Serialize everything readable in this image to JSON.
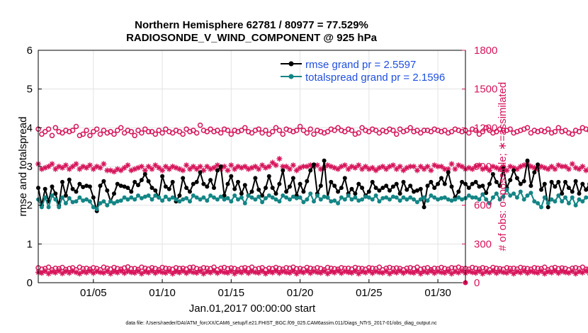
{
  "colors": {
    "rmse": "#000000",
    "spread": "#138585",
    "obs": "#d6145a",
    "grid": "#e3e3e3",
    "legend_text": "#1f4fe0"
  },
  "chart_data": {
    "type": "line",
    "title": "Northern Hemisphere 62781 / 80977 = 77.529%",
    "subtitle": "RADIOSONDE_V_WIND_COMPONENT @ 925 hPa",
    "xlabel": "Jan.01,2017 00:00:00 start",
    "ylabel": "rmse and totalspread",
    "ylabel_right": "# of obs: o=possible; ∗=assimilated",
    "xlim": [
      1,
      32
    ],
    "ylim": [
      0,
      6
    ],
    "ylim_right": [
      0,
      1800
    ],
    "xticks": [
      "01/05",
      "01/10",
      "01/15",
      "01/20",
      "01/25",
      "01/30"
    ],
    "xtick_days": [
      5,
      10,
      15,
      20,
      25,
      30
    ],
    "yticks": [
      "0",
      "1",
      "2",
      "3",
      "4",
      "5",
      "6"
    ],
    "yticks_right": [
      "0",
      "300",
      "600",
      "900",
      "1200",
      "1500",
      "1800"
    ],
    "legend": [
      "rmse grand pr = 2.5597",
      "totalspread grand pr = 2.1596"
    ],
    "legend_position": "top-right",
    "grid": true,
    "x_start": 1.0,
    "x_step": 0.25,
    "series": [
      {
        "name": "rmse",
        "style": "line-filled-circle",
        "values": [
          2.45,
          2.0,
          2.42,
          2.1,
          2.48,
          2.3,
          2.0,
          2.6,
          2.25,
          2.66,
          2.42,
          2.35,
          2.55,
          2.47,
          2.5,
          2.48,
          2.2,
          1.85,
          2.5,
          2.62,
          2.38,
          2.1,
          2.3,
          2.55,
          2.5,
          2.48,
          2.45,
          2.35,
          2.6,
          2.52,
          2.65,
          2.8,
          2.62,
          2.45,
          2.38,
          2.2,
          2.75,
          2.48,
          2.42,
          2.6,
          2.1,
          2.25,
          2.7,
          2.45,
          2.35,
          2.55,
          2.6,
          2.85,
          2.55,
          2.48,
          2.65,
          2.45,
          2.9,
          3.0,
          2.25,
          2.55,
          2.75,
          2.42,
          2.6,
          2.3,
          2.52,
          2.25,
          2.35,
          2.7,
          2.4,
          2.25,
          2.45,
          2.75,
          2.45,
          2.3,
          2.55,
          2.9,
          2.35,
          2.48,
          2.7,
          2.25,
          2.55,
          2.35,
          2.62,
          2.9,
          3.05,
          2.3,
          2.5,
          3.15,
          2.2,
          2.6,
          2.5,
          2.35,
          2.45,
          2.7,
          2.3,
          2.42,
          2.3,
          2.55,
          2.45,
          2.25,
          2.35,
          2.6,
          2.45,
          2.38,
          2.45,
          2.5,
          2.38,
          2.48,
          2.55,
          2.3,
          2.6,
          2.4,
          2.5,
          2.35,
          2.38,
          2.42,
          1.95,
          2.5,
          2.6,
          2.45,
          2.55,
          2.7,
          2.55,
          2.85,
          2.48,
          2.2,
          2.35,
          2.6,
          2.55,
          2.45,
          2.55,
          2.6,
          2.48,
          2.5,
          2.32,
          2.55,
          2.8,
          2.6,
          2.5,
          2.95,
          2.45,
          2.65,
          2.9,
          2.7,
          2.55,
          2.62,
          3.15,
          2.5,
          2.85,
          3.05,
          2.4,
          2.55,
          1.95,
          2.6,
          2.48,
          2.6,
          2.3,
          2.6,
          2.45,
          2.35,
          2.62,
          2.3,
          2.55,
          2.4,
          2.55,
          2.55,
          2.45,
          2.3,
          2.4,
          2.6,
          2.7,
          2.35,
          2.4
        ]
      },
      {
        "name": "totalspread",
        "style": "line-filled-circle",
        "values": [
          2.15,
          1.95,
          2.2,
          1.95,
          2.25,
          2.15,
          1.95,
          2.2,
          2.05,
          2.18,
          2.08,
          2.1,
          2.2,
          2.12,
          2.15,
          2.1,
          1.95,
          1.9,
          2.05,
          2.1,
          2.0,
          2.1,
          2.05,
          2.1,
          2.12,
          2.2,
          2.15,
          2.2,
          2.15,
          2.25,
          2.18,
          2.22,
          2.25,
          2.15,
          2.25,
          2.2,
          2.12,
          2.22,
          2.15,
          2.2,
          2.15,
          2.1,
          2.15,
          2.18,
          2.1,
          2.25,
          2.2,
          2.15,
          2.2,
          2.12,
          2.25,
          2.2,
          2.15,
          2.22,
          2.15,
          2.18,
          2.1,
          2.25,
          2.15,
          2.2,
          2.05,
          2.25,
          2.2,
          2.15,
          2.22,
          2.08,
          2.18,
          2.25,
          2.2,
          2.15,
          2.1,
          2.25,
          2.2,
          2.15,
          2.22,
          2.18,
          2.2,
          2.08,
          2.15,
          2.3,
          2.1,
          2.25,
          2.15,
          2.22,
          2.2,
          2.1,
          2.12,
          2.05,
          2.2,
          2.15,
          2.25,
          2.15,
          2.2,
          2.12,
          2.15,
          2.22,
          2.2,
          2.15,
          2.25,
          2.1,
          2.18,
          2.2,
          2.15,
          2.22,
          2.2,
          2.12,
          2.2,
          2.15,
          2.2,
          2.15,
          2.08,
          2.15,
          2.2,
          2.12,
          2.25,
          2.2,
          2.15,
          2.18,
          2.2,
          2.15,
          2.12,
          2.15,
          2.2,
          2.15,
          2.18,
          2.25,
          2.2,
          2.2,
          2.15,
          2.28,
          2.15,
          2.05,
          2.2,
          2.3,
          2.15,
          2.22,
          2.4,
          2.25,
          2.3,
          2.2,
          2.35,
          2.15,
          2.25,
          2.32,
          2.1,
          2.05,
          1.95,
          2.2,
          2.05,
          2.15,
          2.1,
          2.25,
          2.1,
          2.2,
          2.05,
          2.2,
          2.0,
          2.15,
          2.1,
          2.2,
          2.2,
          2.05,
          2.1,
          2.05,
          2.15,
          2.05,
          1.85,
          1.9
        ]
      },
      {
        "name": "possible",
        "axis": "right",
        "style": "open-circle",
        "values": [
          1190,
          1150,
          1170,
          1190,
          1140,
          1200,
          1170,
          1160,
          1180,
          1170,
          1180,
          1210,
          1140,
          1150,
          1180,
          1140,
          1170,
          1190,
          1150,
          1180,
          1160,
          1170,
          1150,
          1180,
          1200,
          1160,
          1180,
          1170,
          1140,
          1180,
          1160,
          1190,
          1170,
          1170,
          1150,
          1180,
          1160,
          1190,
          1170,
          1160,
          1180,
          1170,
          1150,
          1190,
          1170,
          1180,
          1160,
          1220,
          1180,
          1170,
          1190,
          1170,
          1180,
          1160,
          1190,
          1180,
          1150,
          1180,
          1170,
          1180,
          1200,
          1170,
          1160,
          1180,
          1190,
          1160,
          1180,
          1150,
          1170,
          1200,
          1180,
          1150,
          1190,
          1180,
          1170,
          1180,
          1210,
          1180,
          1160,
          1190,
          1150,
          1180,
          1170,
          1160,
          1170,
          1190,
          1180,
          1200,
          1180,
          1170,
          1190,
          1180,
          1150,
          1160,
          1200,
          1180,
          1170,
          1190,
          1180,
          1160,
          1180,
          1170,
          1190,
          1180,
          1150,
          1190,
          1170,
          1180,
          1200,
          1170,
          1180,
          1160,
          1180,
          1180,
          1170,
          1190,
          1180,
          1170,
          1180,
          1160,
          1170,
          1190,
          1180,
          1170,
          1180,
          1160,
          1190,
          1180,
          1150,
          1170,
          1200,
          1180,
          1160,
          1170,
          1190,
          1180,
          1180,
          1190,
          1160,
          1170,
          1180,
          1190,
          1200,
          1160,
          1180,
          1170,
          1180,
          1170,
          1190,
          1160,
          1170,
          1200,
          1170,
          1180,
          1160,
          1150,
          1180,
          1170,
          1200,
          1190,
          1180,
          1200,
          1170,
          1180,
          1190,
          1210,
          1180
        ]
      },
      {
        "name": "assimilated",
        "axis": "right",
        "style": "asterisk",
        "values": [
          920,
          880,
          890,
          900,
          920,
          880,
          900,
          890,
          910,
          880,
          900,
          920,
          880,
          900,
          890,
          910,
          880,
          900,
          890,
          920,
          870,
          870,
          860,
          880,
          870,
          890,
          910,
          870,
          880,
          890,
          900,
          870,
          900,
          880,
          910,
          890,
          870,
          900,
          880,
          900,
          890,
          880,
          870,
          910,
          880,
          900,
          880,
          900,
          870,
          900,
          880,
          890,
          910,
          880,
          900,
          870,
          910,
          880,
          900,
          890,
          900,
          880,
          890,
          900,
          880,
          910,
          890,
          900,
          930,
          910,
          960,
          900,
          900,
          880,
          910,
          870,
          890,
          900,
          900,
          910,
          900,
          910,
          880,
          890,
          910,
          900,
          890,
          880,
          900,
          910,
          880,
          900,
          890,
          910,
          880,
          900,
          880,
          890,
          870,
          890,
          900,
          880,
          900,
          910,
          880,
          900,
          870,
          890,
          900,
          900,
          870,
          900,
          880,
          900,
          870,
          910,
          900,
          900,
          880,
          880,
          920,
          880,
          910,
          900,
          880,
          890,
          880,
          900,
          910,
          880,
          890,
          870,
          900,
          890,
          880,
          900,
          870,
          900,
          890,
          880,
          900,
          910,
          920,
          900,
          890,
          880,
          900,
          890,
          880,
          900,
          880,
          910,
          900,
          900,
          880,
          920,
          890,
          880,
          900,
          870,
          880,
          900,
          880,
          900,
          910,
          880,
          870,
          890,
          870,
          900,
          910,
          890
        ]
      },
      {
        "name": "possible_lower",
        "axis": "right",
        "style": "open-circle",
        "values": [
          115,
          105,
          110,
          120,
          100,
          112,
          108,
          118,
          102,
          110,
          115,
          100,
          120,
          108,
          112,
          104,
          116,
          110,
          100,
          120,
          112,
          106,
          118,
          110,
          104,
          114,
          122,
          108,
          110,
          102,
          120,
          112,
          106,
          116,
          110,
          100,
          118,
          112,
          108,
          104,
          116,
          110,
          112,
          106,
          118,
          120,
          110,
          104,
          116,
          112,
          108,
          120,
          100,
          112,
          118,
          108,
          114,
          110,
          100,
          112,
          116,
          108,
          120,
          104,
          110,
          116,
          100,
          112,
          108,
          118,
          110,
          104,
          116,
          112,
          120,
          108,
          110,
          104,
          118,
          112,
          106,
          116,
          110,
          100,
          118,
          112,
          108,
          104,
          116,
          110,
          112,
          106,
          118,
          112,
          110,
          104,
          116,
          112,
          108,
          120,
          100,
          112,
          118,
          108,
          114,
          110,
          100,
          112,
          116,
          108,
          120,
          104,
          110,
          116,
          100,
          112,
          108,
          118,
          110,
          104,
          116,
          112,
          120,
          108,
          110,
          104,
          118,
          112,
          106,
          116,
          110,
          100,
          118,
          112,
          108,
          104,
          116,
          110,
          112,
          106,
          118,
          112,
          110,
          104,
          116,
          112,
          108,
          120,
          100,
          112,
          118,
          108,
          114,
          110,
          100,
          112,
          116,
          108,
          120,
          104,
          110,
          116,
          100,
          112,
          108,
          118,
          110,
          104,
          116,
          112,
          115,
          110
        ]
      },
      {
        "name": "assimilated_lower",
        "axis": "right",
        "style": "asterisk",
        "values": [
          80,
          75,
          90,
          70,
          85,
          78,
          92,
          72,
          88,
          76,
          90,
          80,
          70,
          86,
          78,
          92,
          74,
          88,
          80,
          76,
          90,
          70,
          86,
          78,
          92,
          74,
          88,
          80,
          76,
          90,
          70,
          86,
          78,
          92,
          74,
          88,
          80,
          76,
          90,
          70,
          86,
          78,
          92,
          74,
          88,
          80,
          76,
          90,
          70,
          86,
          78,
          92,
          74,
          88,
          80,
          76,
          90,
          70,
          86,
          78,
          92,
          74,
          88,
          80,
          76,
          90,
          70,
          86,
          78,
          92,
          74,
          88,
          80,
          76,
          90,
          70,
          86,
          78,
          92,
          74,
          88,
          80,
          76,
          90,
          70,
          86,
          78,
          92,
          74,
          88,
          80,
          76,
          90,
          70,
          86,
          78,
          92,
          74,
          88,
          80,
          76,
          90,
          70,
          86,
          78,
          92,
          74,
          88,
          80,
          76,
          90,
          70,
          86,
          78,
          92,
          74,
          88,
          80,
          76,
          90,
          70,
          86,
          78,
          92,
          74,
          88,
          80,
          76,
          90,
          70,
          86,
          78,
          92,
          74,
          88,
          80,
          76,
          90,
          70,
          86,
          78,
          92,
          74,
          88,
          80,
          76,
          90,
          70,
          86,
          78,
          92,
          74,
          88,
          80,
          76,
          90,
          70,
          86,
          78,
          92,
          74,
          88,
          80,
          76,
          90,
          70,
          86,
          78,
          60,
          55,
          80,
          75
        ]
      }
    ]
  },
  "footer": {
    "data_file": "data file: /Users/raeder/DAI/ATM_forcXX/CAM6_setup/f.e21.FHIST_BGC.f09_025.CAM6assim.011/Diags_NTrS_2017-01/obs_diag_output.nc"
  }
}
